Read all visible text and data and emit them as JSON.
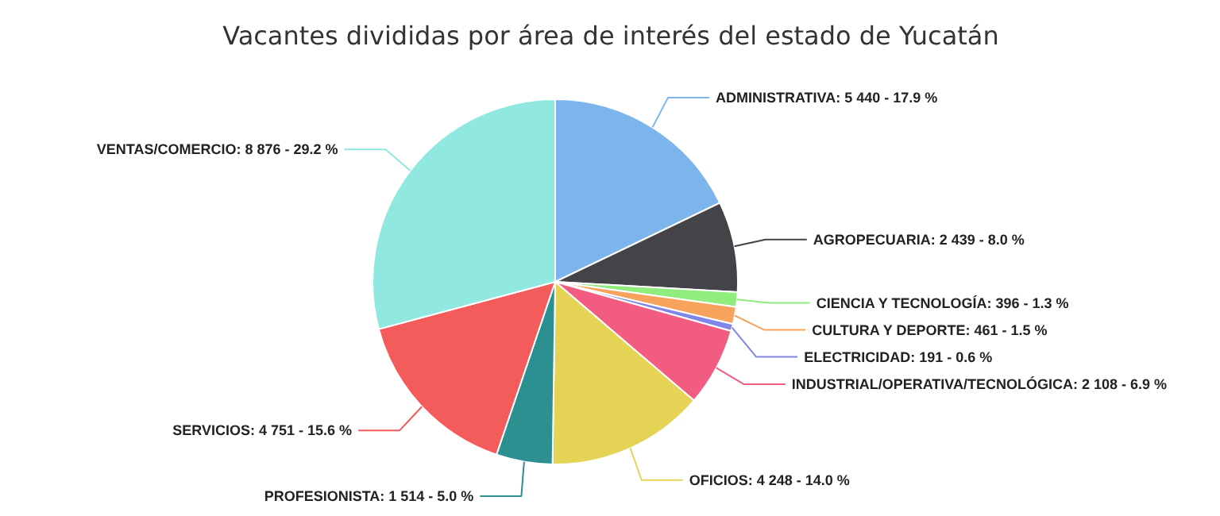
{
  "chart_data": {
    "type": "pie",
    "title": "Vacantes divididas por área de interés del estado de Yucatán",
    "categories": [
      "ADMINISTRATIVA",
      "AGROPECUARIA",
      "CIENCIA Y TECNOLOGÍA",
      "CULTURA Y DEPORTE",
      "ELECTRICIDAD",
      "INDUSTRIAL/OPERATIVA/TECNOLÓGICA",
      "OFICIOS",
      "PROFESIONISTA",
      "SERVICIOS",
      "VENTAS/COMERCIO"
    ],
    "values": [
      5440,
      2439,
      396,
      461,
      191,
      2108,
      4248,
      1514,
      4751,
      8876
    ],
    "value_labels": [
      "5 440 - 17.9 %",
      "2 439 - 8.0 %",
      "396 - 1.3 %",
      "461 - 1.5 %",
      "191 - 0.6 %",
      "2 108 - 6.9 %",
      "4 248 - 14.0 %",
      "1 514 - 5.0 %",
      "4 751 - 15.6 %",
      "8 876 - 29.2 %"
    ],
    "colors": [
      "#7cb5ec",
      "#434348",
      "#90ed7d",
      "#f7a35c",
      "#8085e9",
      "#f15c80",
      "#e4d354",
      "#2b908f",
      "#f45b5b",
      "#91e8e1"
    ]
  }
}
